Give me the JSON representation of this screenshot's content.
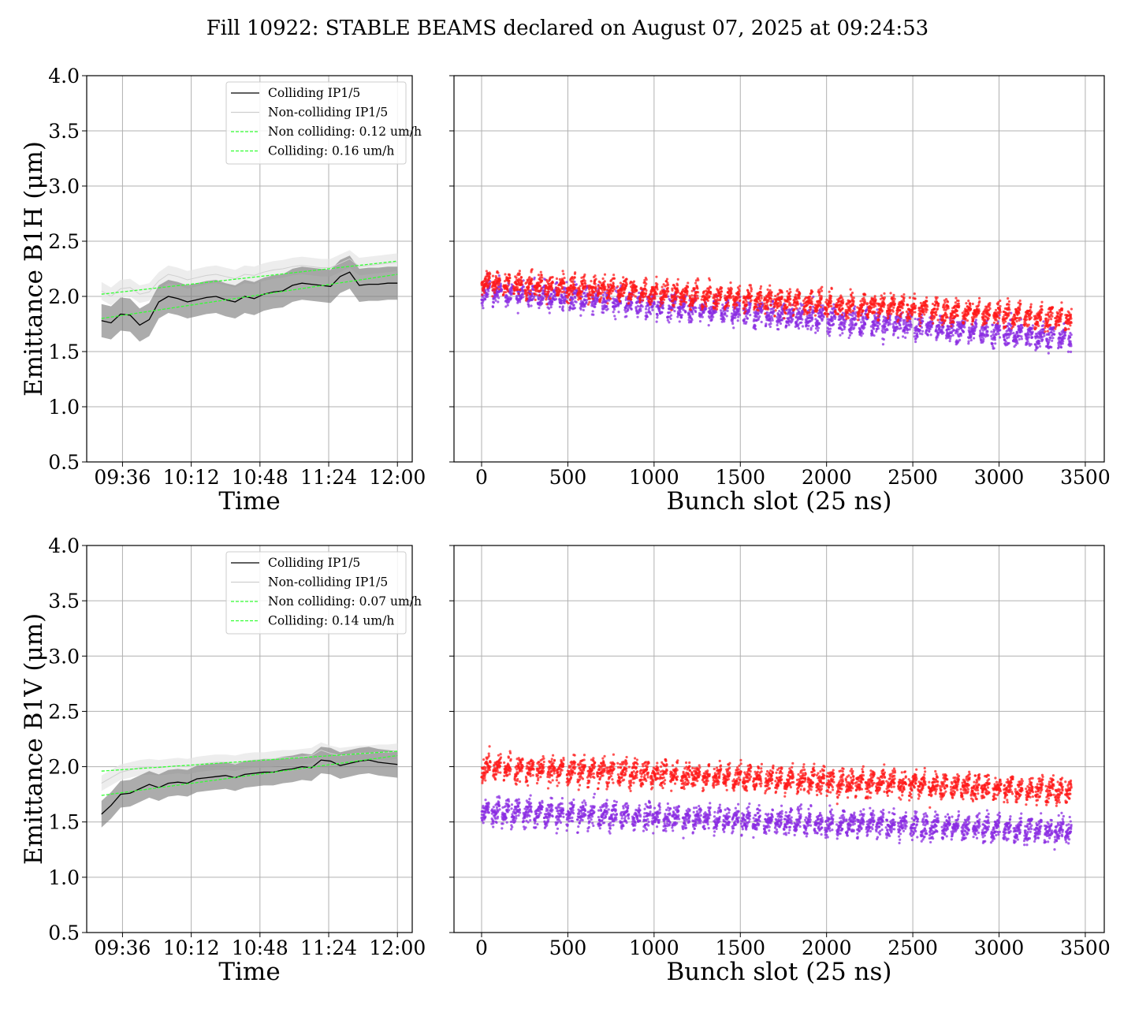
{
  "figure": {
    "title": "Fill 10922: STABLE BEAMS declared on August 07, 2025 at 09:24:53"
  },
  "colors": {
    "colliding": "#000000",
    "band_colliding": "#7f7f7f",
    "non_colliding": "#cfcfcf",
    "band_non_colliding": "#e6e6e6",
    "fit": "#33ff33",
    "scatter_a": "#ff1a1a",
    "scatter_b": "#8a2be2",
    "grid": "#b0b0b0"
  },
  "chart_data": [
    {
      "type": "line",
      "panel": "top-left",
      "xlabel": "Time",
      "ylabel": "Emittance B1H (μm)",
      "x_ticks": [
        "09:36",
        "10:12",
        "10:48",
        "11:24",
        "12:00"
      ],
      "x_range": [
        "09:25",
        "12:00"
      ],
      "ylim": [
        0.5,
        4.0
      ],
      "y_ticks": [
        "0.5",
        "1.0",
        "1.5",
        "2.0",
        "2.5",
        "3.0",
        "3.5",
        "4.0"
      ],
      "grid": true,
      "legend_position": "upper-right",
      "legend": [
        "Colliding IP1/5",
        "Non-colliding IP1/5",
        "Non colliding: 0.12 um/h",
        "Colliding: 0.16 um/h"
      ],
      "x": [
        "09:25",
        "09:30",
        "09:35",
        "09:40",
        "09:45",
        "09:50",
        "09:55",
        "10:00",
        "10:05",
        "10:10",
        "10:15",
        "10:20",
        "10:25",
        "10:30",
        "10:35",
        "10:40",
        "10:45",
        "10:50",
        "10:55",
        "11:00",
        "11:05",
        "11:10",
        "11:15",
        "11:20",
        "11:25",
        "11:30",
        "11:35",
        "11:40",
        "11:45",
        "11:50",
        "11:55",
        "12:00"
      ],
      "series": [
        {
          "name": "Colliding IP1/5",
          "values": [
            1.78,
            1.76,
            1.84,
            1.83,
            1.74,
            1.79,
            1.95,
            2.0,
            1.98,
            1.95,
            1.97,
            1.99,
            2.0,
            1.97,
            1.95,
            2.0,
            1.98,
            2.02,
            2.04,
            2.05,
            2.1,
            2.12,
            2.11,
            2.1,
            2.09,
            2.18,
            2.22,
            2.1,
            2.11,
            2.11,
            2.12,
            2.12
          ],
          "band": 0.15
        },
        {
          "name": "Non-colliding IP1/5",
          "values": [
            2.05,
            2.0,
            2.07,
            2.08,
            2.02,
            2.04,
            2.14,
            2.2,
            2.18,
            2.15,
            2.17,
            2.19,
            2.2,
            2.18,
            2.16,
            2.2,
            2.19,
            2.22,
            2.24,
            2.25,
            2.27,
            2.28,
            2.27,
            2.26,
            2.26,
            2.3,
            2.34,
            2.27,
            2.28,
            2.29,
            2.3,
            2.31
          ],
          "band": 0.08
        }
      ],
      "fits": [
        {
          "name": "Non colliding: 0.12 um/h",
          "start": 2.02,
          "end": 2.32
        },
        {
          "name": "Colliding: 0.16 um/h",
          "start": 1.8,
          "end": 2.2
        }
      ]
    },
    {
      "type": "scatter",
      "panel": "top-right",
      "xlabel": "Bunch slot (25 ns)",
      "x_ticks": [
        "0",
        "500",
        "1000",
        "1500",
        "2000",
        "2500",
        "3000",
        "3500"
      ],
      "xlim": [
        -160,
        3610
      ],
      "ylim": [
        0.5,
        4.0
      ],
      "grid": true,
      "slot_range": [
        0,
        3420
      ],
      "series": [
        {
          "name": "",
          "color_key": "scatter_a",
          "mean_start": 2.13,
          "mean_end": 1.8,
          "spread": 0.09
        },
        {
          "name": "",
          "color_key": "scatter_b",
          "mean_start": 2.05,
          "mean_end": 1.62,
          "spread": 0.1
        }
      ]
    },
    {
      "type": "line",
      "panel": "bottom-left",
      "xlabel": "Time",
      "ylabel": "Emittance B1V (μm)",
      "x_ticks": [
        "09:36",
        "10:12",
        "10:48",
        "11:24",
        "12:00"
      ],
      "x_range": [
        "09:25",
        "12:00"
      ],
      "ylim": [
        0.5,
        4.0
      ],
      "y_ticks": [
        "0.5",
        "1.0",
        "1.5",
        "2.0",
        "2.5",
        "3.0",
        "3.5",
        "4.0"
      ],
      "grid": true,
      "legend_position": "upper-right",
      "legend": [
        "Colliding IP1/5",
        "Non-colliding IP1/5",
        "Non colliding: 0.07 um/h",
        "Colliding: 0.14 um/h"
      ],
      "x": [
        "09:25",
        "09:30",
        "09:35",
        "09:40",
        "09:45",
        "09:50",
        "09:55",
        "10:00",
        "10:05",
        "10:10",
        "10:15",
        "10:20",
        "10:25",
        "10:30",
        "10:35",
        "10:40",
        "10:45",
        "10:50",
        "10:55",
        "11:00",
        "11:05",
        "11:10",
        "11:15",
        "11:20",
        "11:25",
        "11:30",
        "11:35",
        "11:40",
        "11:45",
        "11:50",
        "11:55",
        "12:00"
      ],
      "series": [
        {
          "name": "Colliding IP1/5",
          "values": [
            1.57,
            1.65,
            1.75,
            1.76,
            1.8,
            1.84,
            1.81,
            1.85,
            1.86,
            1.85,
            1.89,
            1.9,
            1.91,
            1.92,
            1.9,
            1.93,
            1.94,
            1.95,
            1.95,
            1.97,
            1.98,
            2.0,
            1.99,
            2.06,
            2.05,
            2.01,
            2.03,
            2.05,
            2.06,
            2.04,
            2.03,
            2.02
          ],
          "band": 0.12
        },
        {
          "name": "Non-colliding IP1/5",
          "values": [
            1.85,
            1.9,
            1.95,
            1.97,
            1.99,
            2.0,
            1.99,
            2.0,
            2.01,
            2.0,
            2.02,
            2.03,
            2.04,
            2.04,
            2.03,
            2.05,
            2.06,
            2.06,
            2.07,
            2.08,
            2.08,
            2.09,
            2.1,
            2.15,
            2.12,
            2.1,
            2.11,
            2.12,
            2.12,
            2.13,
            2.13,
            2.14
          ],
          "band": 0.07
        }
      ],
      "fits": [
        {
          "name": "Non colliding: 0.07 um/h",
          "start": 1.96,
          "end": 2.14
        },
        {
          "name": "Colliding: 0.14 um/h",
          "start": 1.74,
          "end": 2.1
        }
      ]
    },
    {
      "type": "scatter",
      "panel": "bottom-right",
      "xlabel": "Bunch slot (25 ns)",
      "x_ticks": [
        "0",
        "500",
        "1000",
        "1500",
        "2000",
        "2500",
        "3000",
        "3500"
      ],
      "xlim": [
        -160,
        3610
      ],
      "ylim": [
        0.5,
        4.0
      ],
      "grid": true,
      "slot_range": [
        0,
        3420
      ],
      "series": [
        {
          "name": "",
          "color_key": "scatter_a",
          "mean_start": 2.0,
          "mean_end": 1.78,
          "spread": 0.1
        },
        {
          "name": "",
          "color_key": "scatter_b",
          "mean_start": 1.6,
          "mean_end": 1.42,
          "spread": 0.1
        }
      ]
    }
  ]
}
